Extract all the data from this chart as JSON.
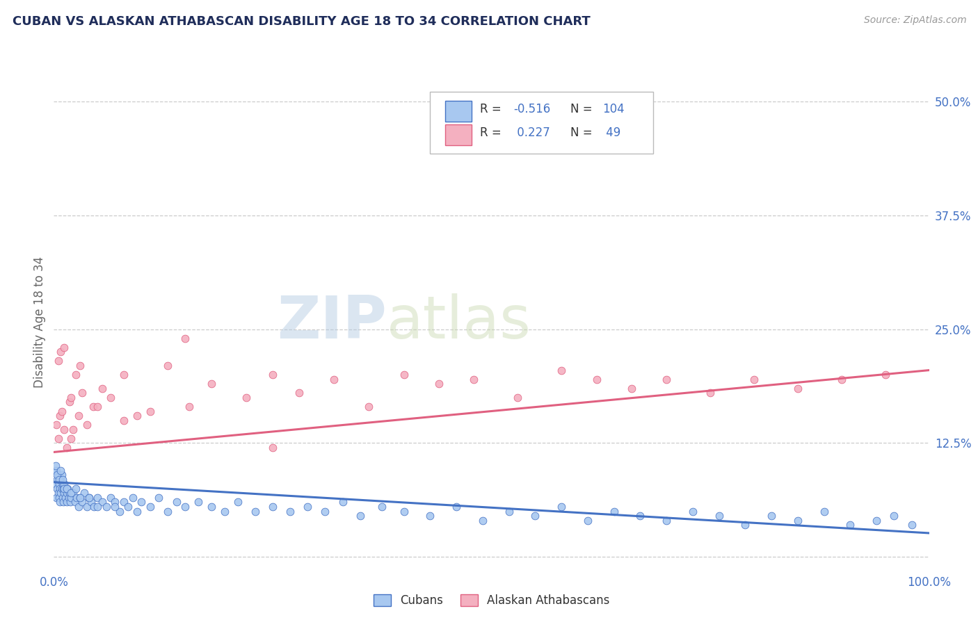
{
  "title": "CUBAN VS ALASKAN ATHABASCAN DISABILITY AGE 18 TO 34 CORRELATION CHART",
  "source": "Source: ZipAtlas.com",
  "ylabel": "Disability Age 18 to 34",
  "xmin": 0.0,
  "xmax": 1.0,
  "ymin": -0.015,
  "ymax": 0.53,
  "yticks": [
    0.0,
    0.125,
    0.25,
    0.375,
    0.5
  ],
  "ytick_labels": [
    "",
    "12.5%",
    "25.0%",
    "37.5%",
    "50.0%"
  ],
  "xtick_labels": [
    "0.0%",
    "100.0%"
  ],
  "cubans_color": "#a8c8f0",
  "athabascans_color": "#f4b0c0",
  "cubans_line_color": "#4472c4",
  "athabascans_line_color": "#e06080",
  "label_cubans": "Cubans",
  "label_athabascans": "Alaskan Athabascans",
  "watermark_zip": "ZIP",
  "watermark_atlas": "atlas",
  "title_color": "#1f2d5a",
  "stats_color": "#4472c4",
  "axis_label_color": "#666666",
  "tick_color": "#4472c4",
  "cubans_trend_x": [
    0.0,
    1.0
  ],
  "cubans_trend_y": [
    0.082,
    0.026
  ],
  "athabascans_trend_x": [
    0.0,
    1.0
  ],
  "athabascans_trend_y": [
    0.115,
    0.205
  ],
  "cubans_x": [
    0.002,
    0.003,
    0.003,
    0.004,
    0.004,
    0.005,
    0.005,
    0.006,
    0.006,
    0.007,
    0.007,
    0.008,
    0.008,
    0.009,
    0.009,
    0.01,
    0.01,
    0.011,
    0.011,
    0.012,
    0.012,
    0.013,
    0.014,
    0.015,
    0.015,
    0.016,
    0.017,
    0.018,
    0.019,
    0.02,
    0.022,
    0.024,
    0.026,
    0.028,
    0.03,
    0.032,
    0.035,
    0.038,
    0.04,
    0.043,
    0.046,
    0.05,
    0.055,
    0.06,
    0.065,
    0.07,
    0.075,
    0.08,
    0.085,
    0.09,
    0.095,
    0.1,
    0.11,
    0.12,
    0.13,
    0.14,
    0.15,
    0.165,
    0.18,
    0.195,
    0.21,
    0.23,
    0.25,
    0.27,
    0.29,
    0.31,
    0.33,
    0.35,
    0.375,
    0.4,
    0.43,
    0.46,
    0.49,
    0.52,
    0.55,
    0.58,
    0.61,
    0.64,
    0.67,
    0.7,
    0.73,
    0.76,
    0.79,
    0.82,
    0.85,
    0.88,
    0.91,
    0.94,
    0.96,
    0.98,
    0.001,
    0.002,
    0.004,
    0.006,
    0.008,
    0.01,
    0.012,
    0.015,
    0.02,
    0.025,
    0.03,
    0.04,
    0.05,
    0.07
  ],
  "cubans_y": [
    0.08,
    0.095,
    0.065,
    0.085,
    0.075,
    0.09,
    0.07,
    0.08,
    0.065,
    0.075,
    0.06,
    0.085,
    0.07,
    0.09,
    0.075,
    0.08,
    0.065,
    0.075,
    0.06,
    0.07,
    0.08,
    0.065,
    0.075,
    0.07,
    0.06,
    0.075,
    0.065,
    0.07,
    0.06,
    0.065,
    0.07,
    0.06,
    0.065,
    0.055,
    0.065,
    0.06,
    0.07,
    0.055,
    0.065,
    0.06,
    0.055,
    0.065,
    0.06,
    0.055,
    0.065,
    0.06,
    0.05,
    0.06,
    0.055,
    0.065,
    0.05,
    0.06,
    0.055,
    0.065,
    0.05,
    0.06,
    0.055,
    0.06,
    0.055,
    0.05,
    0.06,
    0.05,
    0.055,
    0.05,
    0.055,
    0.05,
    0.06,
    0.045,
    0.055,
    0.05,
    0.045,
    0.055,
    0.04,
    0.05,
    0.045,
    0.055,
    0.04,
    0.05,
    0.045,
    0.04,
    0.05,
    0.045,
    0.035,
    0.045,
    0.04,
    0.05,
    0.035,
    0.04,
    0.045,
    0.035,
    0.095,
    0.1,
    0.09,
    0.085,
    0.095,
    0.085,
    0.075,
    0.075,
    0.07,
    0.075,
    0.065,
    0.065,
    0.055,
    0.055
  ],
  "athabascans_x": [
    0.003,
    0.005,
    0.007,
    0.009,
    0.012,
    0.015,
    0.018,
    0.02,
    0.022,
    0.025,
    0.028,
    0.032,
    0.038,
    0.045,
    0.055,
    0.065,
    0.08,
    0.095,
    0.11,
    0.13,
    0.155,
    0.18,
    0.22,
    0.25,
    0.28,
    0.32,
    0.36,
    0.4,
    0.44,
    0.48,
    0.53,
    0.58,
    0.62,
    0.66,
    0.7,
    0.75,
    0.8,
    0.85,
    0.9,
    0.95,
    0.005,
    0.008,
    0.012,
    0.02,
    0.03,
    0.05,
    0.08,
    0.15,
    0.25
  ],
  "athabascans_y": [
    0.145,
    0.13,
    0.155,
    0.16,
    0.14,
    0.12,
    0.17,
    0.13,
    0.14,
    0.2,
    0.155,
    0.18,
    0.145,
    0.165,
    0.185,
    0.175,
    0.2,
    0.155,
    0.16,
    0.21,
    0.165,
    0.19,
    0.175,
    0.2,
    0.18,
    0.195,
    0.165,
    0.2,
    0.19,
    0.195,
    0.175,
    0.205,
    0.195,
    0.185,
    0.195,
    0.18,
    0.195,
    0.185,
    0.195,
    0.2,
    0.215,
    0.225,
    0.23,
    0.175,
    0.21,
    0.165,
    0.15,
    0.24,
    0.12
  ]
}
